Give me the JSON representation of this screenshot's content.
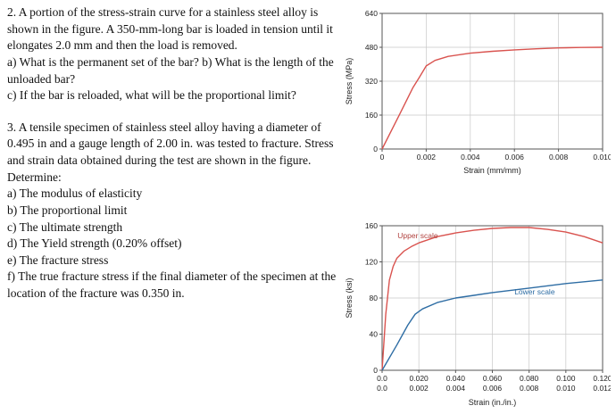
{
  "problems": {
    "p2": {
      "statement": "2. A portion of the stress-strain curve for a stainless steel alloy is shown in the figure. A 350-mm-long bar is loaded in tension until it elongates 2.0 mm and then the load is removed.",
      "parts": [
        "a) What is the permanent set of the bar? b) What is the length of the unloaded bar?",
        "c) If the bar is reloaded, what will be the proportional limit?"
      ]
    },
    "p3": {
      "statement": "3. A tensile specimen of stainless steel alloy having a diameter of 0.495 in and a gauge length of 2.00 in. was tested to fracture. Stress and strain data obtained during the test are shown in the figure. Determine:",
      "parts": [
        "a) The modulus of elasticity",
        "b) The proportional limit",
        "c) The ultimate strength",
        "d) The Yield strength (0.20% offset)",
        "e) The fracture stress",
        "f) The true fracture stress if the final diameter of the specimen at the location of the fracture was 0.350 in."
      ]
    }
  },
  "colors": {
    "curve_red": "#d9534f",
    "curve_blue": "#2e6da4",
    "grid": "#c8c8c8",
    "axis": "#555555"
  },
  "chart_data": [
    {
      "type": "line",
      "title": "",
      "ylabel": "Stress (MPa)",
      "xlabel": "Strain (mm/mm)",
      "ylim": [
        0,
        640
      ],
      "yticks": [
        0,
        160,
        320,
        480,
        640
      ],
      "grid": true,
      "x_axes": [
        {
          "label": "Strain (mm/mm)",
          "max": 0.01,
          "ticks": [
            "0",
            "0.002",
            "0.004",
            "0.006",
            "0.008",
            "0.010"
          ]
        }
      ],
      "series": [
        {
          "name": "stress-strain-curve",
          "color": "#d9534f",
          "xmax": 0.01,
          "x": [
            0,
            0.0008,
            0.0014,
            0.0017,
            0.002,
            0.0024,
            0.003,
            0.004,
            0.005,
            0.006,
            0.007,
            0.008,
            0.009,
            0.01
          ],
          "y": [
            0,
            165,
            290,
            340,
            392,
            418,
            437,
            452,
            461,
            468,
            473,
            477,
            479,
            480
          ]
        }
      ],
      "annotations": []
    },
    {
      "type": "line",
      "title": "",
      "ylabel": "Stress (ksi)",
      "xlabel": "Strain (in./in.)",
      "ylim": [
        0,
        160
      ],
      "yticks": [
        0,
        40,
        80,
        120,
        160
      ],
      "grid": true,
      "x_axes": [
        {
          "label": "upper scale",
          "max": 0.12,
          "ticks": [
            "0.0",
            "0.020",
            "0.040",
            "0.060",
            "0.080",
            "0.100",
            "0.120"
          ]
        },
        {
          "label": "lower scale",
          "max": 0.012,
          "ticks": [
            "0.0",
            "0.002",
            "0.004",
            "0.006",
            "0.008",
            "0.010",
            "0.012"
          ]
        }
      ],
      "series": [
        {
          "name": "upper-scale-curve",
          "color": "#d9534f",
          "xmax": 0.12,
          "x": [
            0,
            0.002,
            0.004,
            0.006,
            0.008,
            0.012,
            0.016,
            0.02,
            0.03,
            0.04,
            0.05,
            0.06,
            0.07,
            0.08,
            0.09,
            0.1,
            0.11,
            0.12
          ],
          "y": [
            0,
            62,
            100,
            115,
            124,
            132,
            137,
            141,
            148,
            152,
            155,
            157,
            158,
            158,
            156,
            153,
            148,
            141
          ]
        },
        {
          "name": "lower-scale-curve",
          "color": "#2e6da4",
          "xmax": 0.012,
          "x": [
            0,
            0.0008,
            0.0014,
            0.0018,
            0.0022,
            0.003,
            0.004,
            0.005,
            0.006,
            0.008,
            0.01,
            0.012
          ],
          "y": [
            0,
            28,
            50,
            62,
            68,
            75,
            80,
            83,
            86,
            91,
            96,
            100
          ]
        }
      ],
      "annotations": [
        {
          "text": "Upper scale",
          "color": "#b0413e",
          "fx": 0.07,
          "y": 146
        },
        {
          "text": "Lower scale",
          "color": "#2e6da4",
          "fx": 0.6,
          "y": 84
        }
      ]
    }
  ]
}
